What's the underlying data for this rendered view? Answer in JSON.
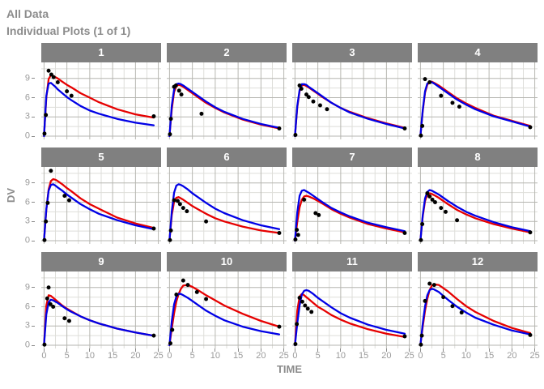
{
  "header": {
    "title": "All Data",
    "subtitle": "Individual Plots (1 of 1)"
  },
  "chart_data": {
    "type": "line",
    "title": "All Data",
    "subtitle": "Individual Plots (1 of 1)",
    "xlabel": "TIME",
    "ylabel": "DV",
    "x_ticks": [
      0,
      5,
      10,
      15,
      20,
      25
    ],
    "y_ticks": [
      0,
      3,
      6,
      9
    ],
    "x_minor": [
      2.5,
      7.5,
      12.5,
      17.5,
      22.5
    ],
    "y_minor": [
      1.5,
      4.5,
      7.5,
      10.5
    ],
    "xlim": [
      -0.6,
      25.6
    ],
    "ylim": [
      -0.5,
      11.5
    ],
    "grid": true,
    "legend": false,
    "colors": {
      "observed_points": "#000000",
      "red_line": "#e60000",
      "blue_line": "#0000e6",
      "strip_bg": "#808080",
      "strip_text": "#ffffff",
      "grid_major": "#b5b5b0",
      "grid_minor": "#dedeD9",
      "axis_text": "#9a9a9a",
      "title_text": "#8c8c8c"
    },
    "line_t": [
      0,
      0.5,
      1,
      1.5,
      2,
      2.5,
      3,
      4,
      5,
      6,
      8,
      10,
      12,
      16,
      20,
      24
    ],
    "facets": [
      {
        "label": "1",
        "red": [
          0,
          6.0,
          8.9,
          9.5,
          9.4,
          9.2,
          9.0,
          8.5,
          8.0,
          7.6,
          6.7,
          6.0,
          5.3,
          4.2,
          3.4,
          2.9
        ],
        "blue": [
          0,
          6.3,
          8.2,
          8.3,
          8.0,
          7.7,
          7.3,
          6.7,
          6.1,
          5.6,
          4.7,
          4.0,
          3.5,
          2.7,
          2.1,
          1.7
        ],
        "obs": [
          [
            0.1,
            0.4
          ],
          [
            0.4,
            3.3
          ],
          [
            1,
            10.2
          ],
          [
            1.6,
            9.6
          ],
          [
            2.1,
            9.2
          ],
          [
            3,
            8.4
          ],
          [
            5,
            7.0
          ],
          [
            6,
            6.3
          ],
          [
            24,
            3.1
          ]
        ]
      },
      {
        "label": "2",
        "red": [
          0,
          4.2,
          6.9,
          7.8,
          8.0,
          7.9,
          7.7,
          7.2,
          6.7,
          6.2,
          5.2,
          4.4,
          3.7,
          2.6,
          1.8,
          1.2
        ],
        "blue": [
          0,
          4.8,
          7.3,
          8.1,
          8.2,
          8.1,
          7.9,
          7.4,
          6.9,
          6.4,
          5.4,
          4.5,
          3.8,
          2.7,
          1.9,
          1.3
        ],
        "obs": [
          [
            0.1,
            0.3
          ],
          [
            0.3,
            2.7
          ],
          [
            1,
            7.7
          ],
          [
            1.4,
            7.9
          ],
          [
            2.1,
            7.1
          ],
          [
            2.6,
            6.5
          ],
          [
            7,
            3.5
          ],
          [
            24,
            1.2
          ]
        ]
      },
      {
        "label": "3",
        "red": [
          0,
          4.5,
          7.0,
          7.9,
          8.0,
          7.8,
          7.6,
          7.1,
          6.6,
          6.1,
          5.2,
          4.4,
          3.8,
          2.8,
          2.0,
          1.3
        ],
        "blue": [
          0,
          4.7,
          7.2,
          8.1,
          8.1,
          8.0,
          7.7,
          7.2,
          6.7,
          6.2,
          5.2,
          4.4,
          3.7,
          2.7,
          1.9,
          1.2
        ],
        "obs": [
          [
            0.1,
            0.2
          ],
          [
            1,
            7.9
          ],
          [
            1.4,
            7.4
          ],
          [
            2.5,
            6.5
          ],
          [
            3,
            6.1
          ],
          [
            4,
            5.4
          ],
          [
            5.5,
            4.8
          ],
          [
            7,
            4.2
          ],
          [
            24,
            1.2
          ]
        ]
      },
      {
        "label": "4",
        "red": [
          0,
          3.9,
          6.8,
          8.0,
          8.5,
          8.5,
          8.3,
          7.9,
          7.4,
          6.9,
          5.9,
          5.1,
          4.4,
          3.2,
          2.4,
          1.6
        ],
        "blue": [
          0,
          4.1,
          7.0,
          8.2,
          8.5,
          8.4,
          8.2,
          7.7,
          7.2,
          6.7,
          5.7,
          4.9,
          4.2,
          3.1,
          2.3,
          1.5
        ],
        "obs": [
          [
            0.1,
            0.1
          ],
          [
            0.4,
            1.6
          ],
          [
            1,
            8.9
          ],
          [
            2,
            8.4
          ],
          [
            4.5,
            6.3
          ],
          [
            7,
            5.2
          ],
          [
            8.5,
            4.6
          ],
          [
            24,
            1.4
          ]
        ]
      },
      {
        "label": "5",
        "red": [
          0,
          4.8,
          8.0,
          9.3,
          9.6,
          9.5,
          9.3,
          8.8,
          8.2,
          7.7,
          6.6,
          5.7,
          5.0,
          3.6,
          2.7,
          2.0
        ],
        "blue": [
          0,
          4.9,
          7.8,
          8.7,
          8.8,
          8.6,
          8.3,
          7.8,
          7.2,
          6.7,
          5.7,
          4.9,
          4.2,
          3.2,
          2.4,
          1.8
        ],
        "obs": [
          [
            0.1,
            0.1
          ],
          [
            0.4,
            3.0
          ],
          [
            0.8,
            5.9
          ],
          [
            1.5,
            10.9
          ],
          [
            4.5,
            7.0
          ],
          [
            5.5,
            6.3
          ],
          [
            24,
            1.9
          ]
        ]
      },
      {
        "label": "6",
        "red": [
          0,
          4.0,
          6.1,
          6.7,
          6.8,
          6.6,
          6.4,
          5.9,
          5.4,
          5.0,
          4.2,
          3.5,
          3.0,
          2.2,
          1.6,
          1.2
        ],
        "blue": [
          0,
          4.6,
          7.5,
          8.6,
          8.8,
          8.7,
          8.5,
          8.0,
          7.4,
          6.9,
          5.9,
          5.0,
          4.3,
          3.2,
          2.4,
          1.8
        ],
        "obs": [
          [
            0.1,
            0.1
          ],
          [
            0.3,
            1.6
          ],
          [
            1,
            6.3
          ],
          [
            1.8,
            6.2
          ],
          [
            2.3,
            5.7
          ],
          [
            3,
            5.1
          ],
          [
            3.8,
            4.6
          ],
          [
            8,
            3.0
          ],
          [
            24,
            1.2
          ]
        ]
      },
      {
        "label": "7",
        "red": [
          0,
          2.9,
          5.2,
          6.4,
          6.9,
          7.0,
          6.9,
          6.6,
          6.2,
          5.8,
          4.9,
          4.2,
          3.6,
          2.6,
          1.9,
          1.3
        ],
        "blue": [
          0,
          4.4,
          7.0,
          7.8,
          7.9,
          7.7,
          7.5,
          7.0,
          6.5,
          6.0,
          5.1,
          4.4,
          3.8,
          2.8,
          2.1,
          1.5
        ],
        "obs": [
          [
            0.1,
            0.2
          ],
          [
            0.4,
            1.7
          ],
          [
            0.7,
            0.9
          ],
          [
            2,
            6.4
          ],
          [
            4.5,
            4.3
          ],
          [
            5.2,
            4.0
          ],
          [
            24,
            1.2
          ]
        ]
      },
      {
        "label": "8",
        "red": [
          0,
          3.8,
          6.2,
          7.2,
          7.4,
          7.3,
          7.1,
          6.7,
          6.2,
          5.7,
          4.8,
          4.1,
          3.5,
          2.6,
          1.9,
          1.3
        ],
        "blue": [
          0,
          4.0,
          6.6,
          7.6,
          7.9,
          7.8,
          7.6,
          7.2,
          6.7,
          6.2,
          5.3,
          4.5,
          3.9,
          2.9,
          2.1,
          1.5
        ],
        "obs": [
          [
            0.1,
            0.1
          ],
          [
            0.4,
            2.6
          ],
          [
            1.5,
            7.4
          ],
          [
            2,
            6.9
          ],
          [
            2.6,
            6.4
          ],
          [
            3.2,
            6.0
          ],
          [
            4.5,
            5.1
          ],
          [
            5.5,
            4.5
          ],
          [
            8,
            3.2
          ],
          [
            24,
            1.3
          ]
        ]
      },
      {
        "label": "9",
        "red": [
          0,
          6.2,
          7.8,
          7.7,
          7.4,
          7.1,
          6.8,
          6.2,
          5.7,
          5.3,
          4.5,
          3.9,
          3.4,
          2.6,
          2.0,
          1.5
        ],
        "blue": [
          0,
          4.8,
          6.7,
          7.1,
          7.0,
          6.8,
          6.6,
          6.1,
          5.6,
          5.2,
          4.5,
          3.9,
          3.4,
          2.6,
          2.0,
          1.5
        ],
        "obs": [
          [
            0.1,
            0.1
          ],
          [
            0.7,
            7.3
          ],
          [
            1,
            9.0
          ],
          [
            1.4,
            6.4
          ],
          [
            2,
            6.0
          ],
          [
            4.5,
            4.2
          ],
          [
            5.5,
            3.8
          ],
          [
            24,
            1.5
          ]
        ]
      },
      {
        "label": "10",
        "red": [
          0,
          2.6,
          5.0,
          6.8,
          8.0,
          8.8,
          9.3,
          9.4,
          9.1,
          8.7,
          7.8,
          7.0,
          6.2,
          4.9,
          3.8,
          2.9
        ],
        "blue": [
          0,
          3.8,
          6.4,
          7.6,
          8.0,
          8.0,
          7.8,
          7.4,
          6.9,
          6.4,
          5.4,
          4.6,
          3.9,
          2.9,
          2.2,
          1.7
        ],
        "obs": [
          [
            0.2,
            0.3
          ],
          [
            0.6,
            2.4
          ],
          [
            1.5,
            7.9
          ],
          [
            3,
            10.1
          ],
          [
            4,
            9.4
          ],
          [
            6,
            8.3
          ],
          [
            8,
            7.2
          ],
          [
            24,
            2.9
          ]
        ]
      },
      {
        "label": "11",
        "red": [
          0,
          5.4,
          7.6,
          8.0,
          7.8,
          7.5,
          7.2,
          6.6,
          6.0,
          5.6,
          4.7,
          4.0,
          3.4,
          2.5,
          1.8,
          1.3
        ],
        "blue": [
          0,
          3.4,
          6.2,
          7.9,
          8.5,
          8.6,
          8.5,
          8.0,
          7.4,
          6.9,
          5.9,
          5.0,
          4.3,
          3.2,
          2.4,
          1.8
        ],
        "obs": [
          [
            0.1,
            0.2
          ],
          [
            0.4,
            3.3
          ],
          [
            1,
            7.4
          ],
          [
            1.6,
            6.8
          ],
          [
            2.2,
            6.2
          ],
          [
            2.8,
            5.7
          ],
          [
            3.6,
            5.2
          ],
          [
            24,
            1.4
          ]
        ]
      },
      {
        "label": "12",
        "red": [
          0,
          2.9,
          5.4,
          7.2,
          8.6,
          9.3,
          9.5,
          9.4,
          8.9,
          8.4,
          7.2,
          6.1,
          5.2,
          3.8,
          2.7,
          1.9
        ],
        "blue": [
          0,
          3.4,
          6.1,
          7.8,
          8.6,
          8.8,
          8.7,
          8.3,
          7.7,
          7.1,
          6.0,
          5.1,
          4.3,
          3.2,
          2.3,
          1.7
        ],
        "obs": [
          [
            0.1,
            0.1
          ],
          [
            0.3,
            1.5
          ],
          [
            1,
            6.9
          ],
          [
            2,
            9.6
          ],
          [
            3,
            9.4
          ],
          [
            5,
            7.5
          ],
          [
            7,
            6.1
          ],
          [
            9,
            5.1
          ],
          [
            24,
            1.6
          ]
        ]
      }
    ]
  }
}
